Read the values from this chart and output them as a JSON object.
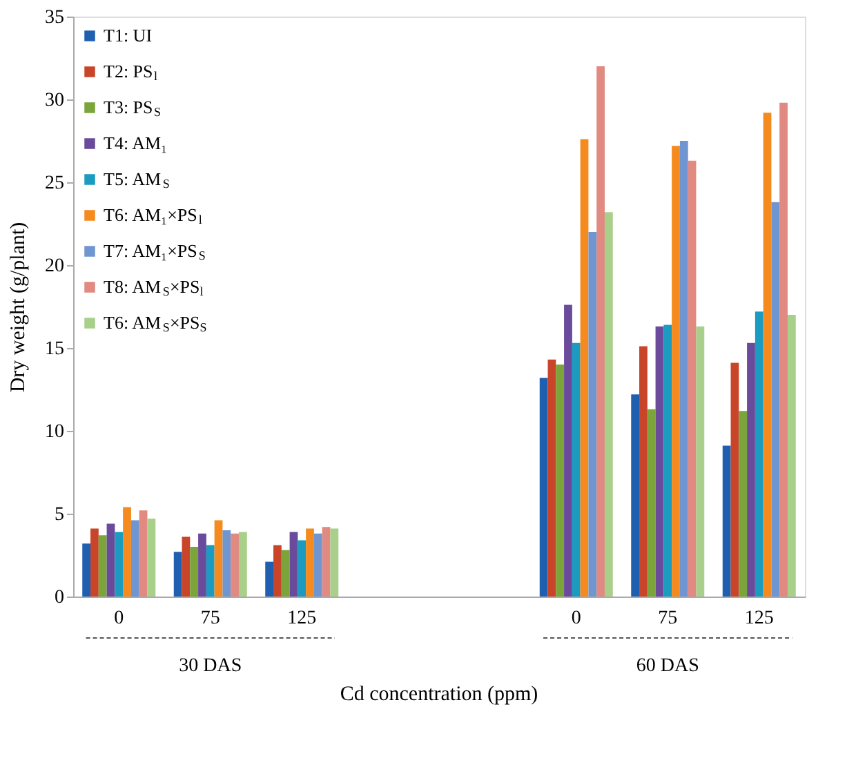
{
  "chart_data": {
    "type": "bar",
    "xlabel": "Cd concentration (ppm)",
    "ylabel": "Dry weight (g/plant)",
    "categories": [
      "0",
      "75",
      "125",
      null,
      null,
      "0",
      "75",
      "125"
    ],
    "ylim": [
      0,
      35
    ],
    "yticks": [
      0,
      5,
      10,
      15,
      20,
      25,
      30,
      35
    ],
    "grid": false,
    "legend": "top left",
    "annotations": [
      "30 DAS",
      "60 DAS"
    ],
    "series": [
      {
        "name": "T1: UI",
        "color": "#1f5fb0",
        "values": [
          3.2,
          2.7,
          2.1,
          null,
          null,
          13.2,
          12.2,
          9.1
        ]
      },
      {
        "name": "T2: PS$_{l}$",
        "color": "#c8452a",
        "values": [
          4.1,
          3.6,
          3.1,
          null,
          null,
          14.3,
          15.1,
          14.1
        ]
      },
      {
        "name": "T3: PS$_{S}$",
        "color": "#7ba43a",
        "values": [
          3.7,
          3.0,
          2.8,
          null,
          null,
          14.0,
          11.3,
          11.2
        ]
      },
      {
        "name": "T4: AM₁",
        "color": "#6a4a9a",
        "values": [
          4.4,
          3.8,
          3.9,
          null,
          null,
          17.6,
          16.3,
          15.3
        ]
      },
      {
        "name": "T5: AM$_{S}$",
        "color": "#1a9bbf",
        "values": [
          3.9,
          3.1,
          3.4,
          null,
          null,
          15.3,
          16.4,
          17.2
        ]
      },
      {
        "name": "T6: AM₁×PS$_{l}$",
        "color": "#f58b1f",
        "values": [
          5.4,
          4.6,
          4.1,
          null,
          null,
          27.6,
          27.2,
          29.2
        ]
      },
      {
        "name": "T7: AM₁×PS$_{S}$",
        "color": "#6f96d0",
        "values": [
          4.6,
          4.0,
          3.8,
          null,
          null,
          22.0,
          27.5,
          23.8
        ]
      },
      {
        "name": "T8: AM$_{S}$×PS$_{l}$",
        "color": "#e08a82",
        "values": [
          5.2,
          3.8,
          4.2,
          null,
          null,
          32.0,
          26.3,
          29.8
        ]
      },
      {
        "name": "T6: AM$_{S}$×PS$_{S}$",
        "color": "#a8d08a",
        "values": [
          4.7,
          3.9,
          4.1,
          null,
          null,
          23.2,
          16.3,
          17.0
        ]
      }
    ]
  }
}
